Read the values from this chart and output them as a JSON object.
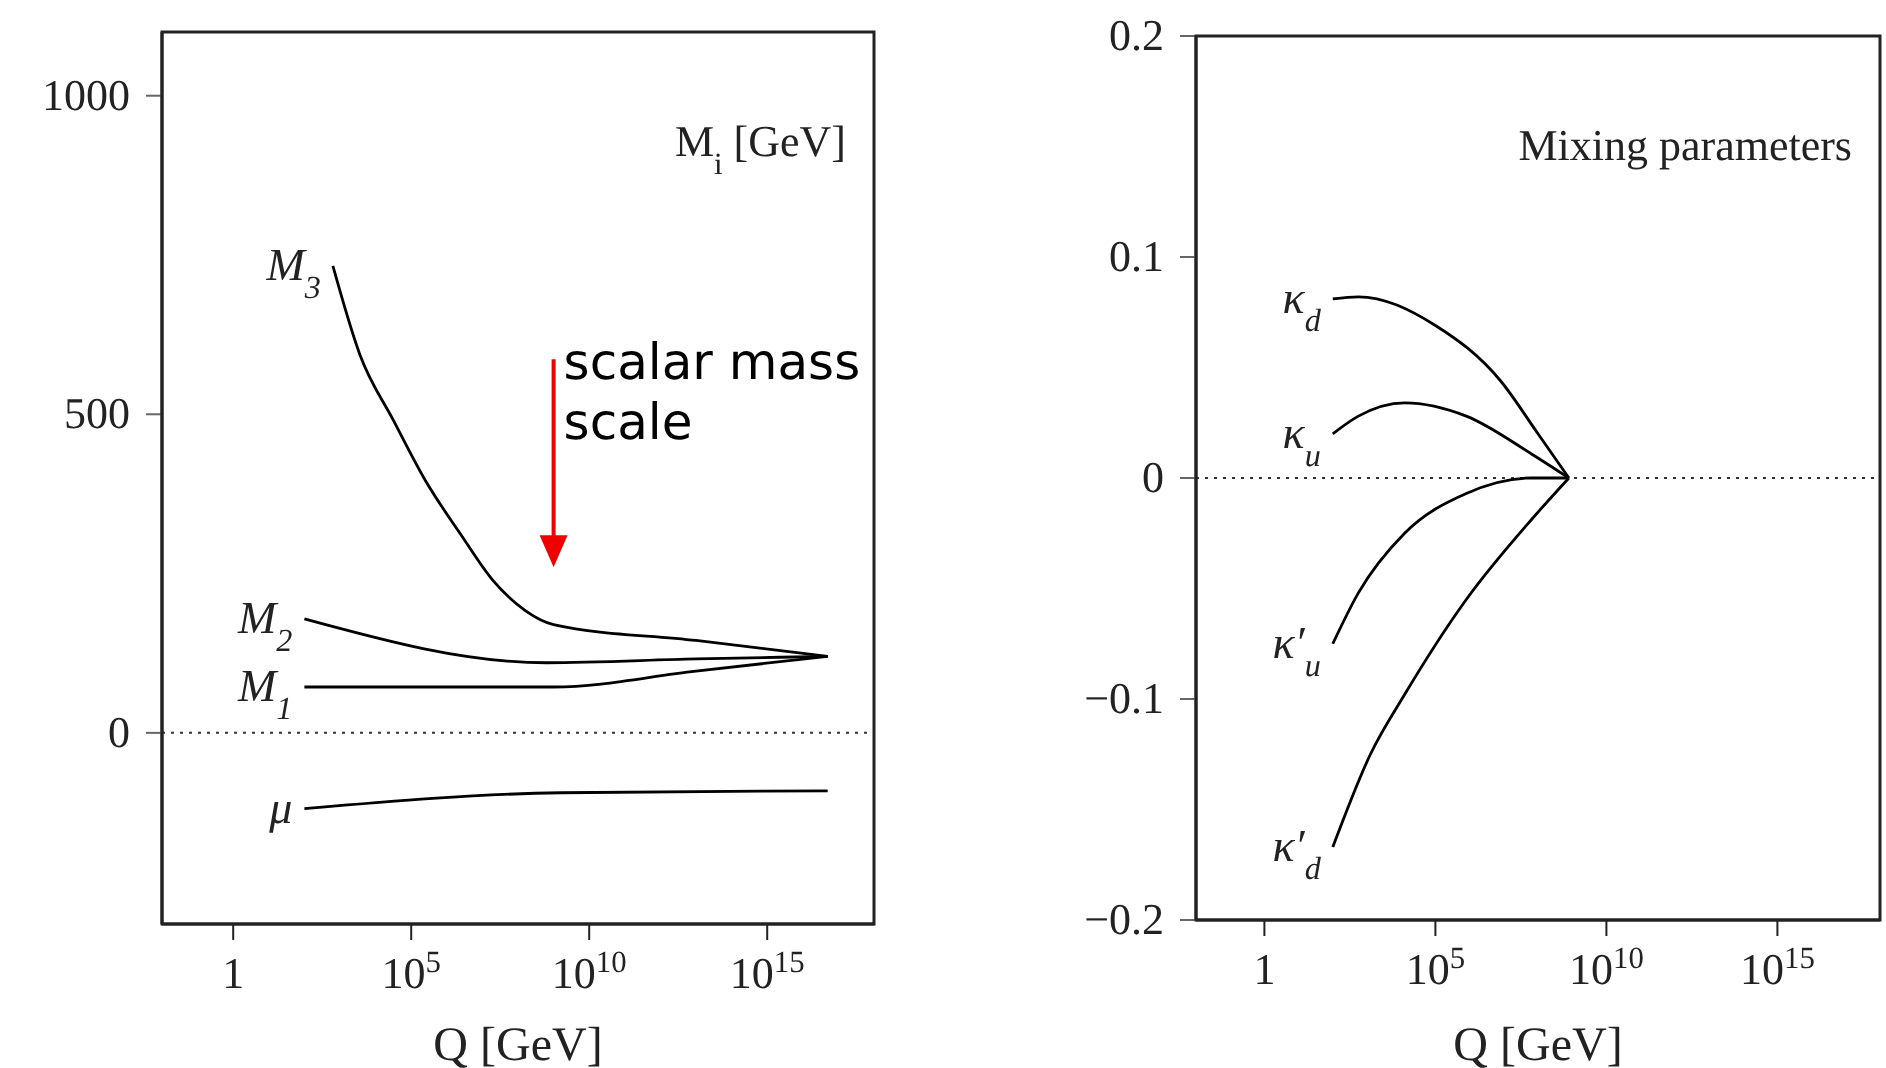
{
  "chart_data": [
    {
      "type": "line",
      "xlabel": "Q [GeV]",
      "annotations": [
        "M$_{i}$ [GeV]",
        "scalar mass scale"
      ],
      "log": "x",
      "xlim": [
        0.01,
        1e+18
      ],
      "xticks": [
        {
          "value": 1,
          "label": "1"
        },
        {
          "value": 100000,
          "label": "10$^{5}$"
        },
        {
          "value": 10000000000.0,
          "label": "10$^{10}$"
        },
        {
          "value": 1000000000000000.0,
          "label": "10$^{15}$"
        }
      ],
      "ylim": [
        -300,
        1100
      ],
      "yticks": [
        0,
        500,
        1000
      ],
      "ref_lines": [
        {
          "axis": "y",
          "value": 0,
          "line_style": "dotted"
        }
      ],
      "series": [
        {
          "name": "M$_{3}$",
          "color": "#000000",
          "x": [
            630,
            3600,
            32000,
            250000,
            2500000,
            20000000.0,
            160000000.0,
            1000000000.0,
            10000000000000.0,
            5e+16
          ],
          "values": [
            733,
            594,
            490,
            396,
            311,
            239,
            192,
            170,
            145,
            120
          ]
        },
        {
          "name": "M$_{2}$",
          "color": "#000000",
          "x": [
            100,
            630000000.0,
            10000000000000.0,
            5e+16
          ],
          "values": [
            179,
            110,
            116,
            120
          ]
        },
        {
          "name": "M$_{1}$",
          "color": "#000000",
          "x": [
            100,
            1000000000.0,
            10000000000000.0,
            5e+16
          ],
          "values": [
            72,
            72,
            97,
            120
          ]
        },
        {
          "name": "μ",
          "color": "#000000",
          "x": [
            100,
            1600000000.0,
            5e+16
          ],
          "values": [
            -119,
            -94,
            -91
          ]
        }
      ]
    },
    {
      "type": "line",
      "xlabel": "Q [GeV]",
      "annotations": [
        "Mixing parameters"
      ],
      "log": "x",
      "xlim": [
        0.01,
        1e+18
      ],
      "xticks": [
        {
          "value": 1,
          "label": "1"
        },
        {
          "value": 100000,
          "label": "10$^{5}$"
        },
        {
          "value": 10000000000.0,
          "label": "10$^{10}$"
        },
        {
          "value": 1000000000000000.0,
          "label": "10$^{15}$"
        }
      ],
      "ylim": [
        -0.2,
        0.2
      ],
      "yticks": [
        {
          "value": -0.2,
          "label": "−0.2"
        },
        {
          "value": -0.1,
          "label": "−0.1"
        },
        0,
        0.1,
        0.2
      ],
      "ref_lines": [
        {
          "axis": "y",
          "value": 0,
          "line_style": "dotted"
        }
      ],
      "series": [
        {
          "name": "κ$_{d}$",
          "color": "#000000",
          "x": [
            100,
            560,
            100000,
            8000000,
            100000000.0,
            800000000.0
          ],
          "values": [
            0.081,
            0.082,
            0.069,
            0.044,
            0.02,
            0
          ]
        },
        {
          "name": "κ$_{u}$",
          "color": "#000000",
          "x": [
            100,
            560,
            12600,
            800000,
            63000000.0,
            800000000.0
          ],
          "values": [
            0.02,
            0.028,
            0.034,
            0.028,
            0.011,
            0
          ]
        },
        {
          "name": "κ′$_{u}$",
          "color": "#000000",
          "x": [
            100,
            560,
            12600,
            800000,
            63000000.0,
            800000000.0
          ],
          "values": [
            -0.075,
            -0.052,
            -0.025,
            -0.007,
            0,
            0
          ]
        },
        {
          "name": "κ′$_{d}$",
          "color": "#000000",
          "x": [
            100,
            1260,
            12600,
            800000,
            63000000.0,
            800000000.0
          ],
          "values": [
            -0.167,
            -0.125,
            -0.098,
            -0.055,
            -0.019,
            0
          ]
        }
      ]
    }
  ]
}
